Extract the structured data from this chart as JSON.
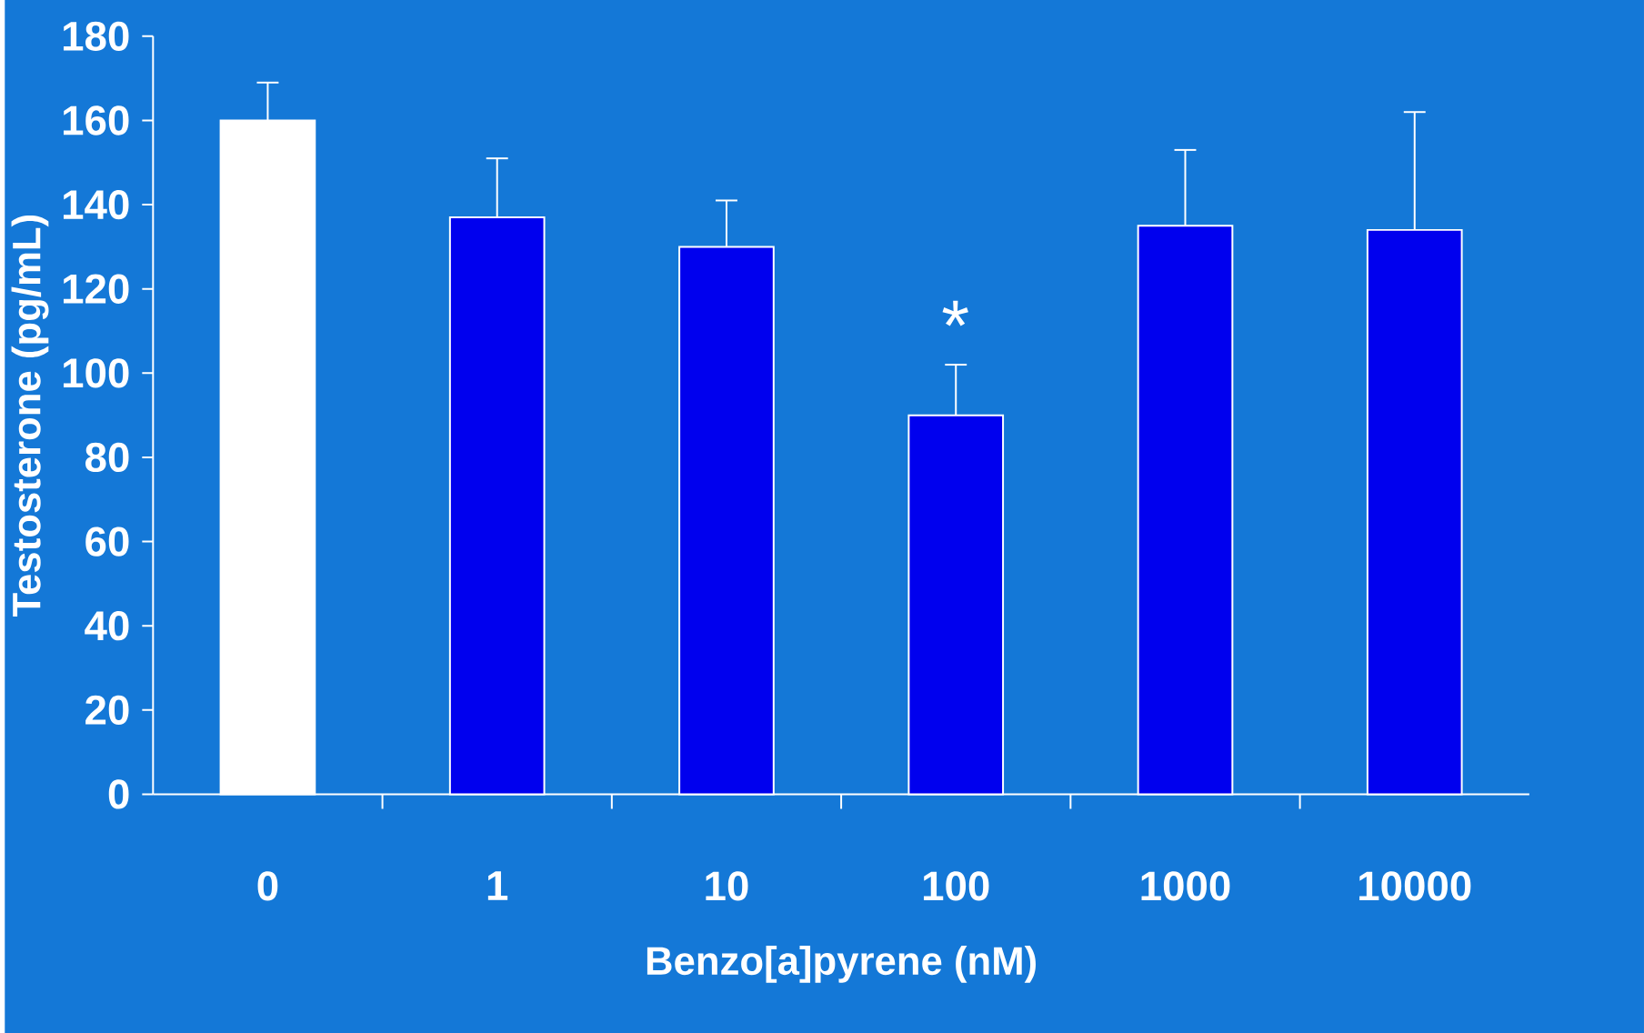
{
  "chart_data": {
    "type": "bar",
    "xlabel": "Benzo[a]pyrene (nM)",
    "ylabel": "Testosterone (pg/mL)",
    "categories": [
      "0",
      "1",
      "10",
      "100",
      "1000",
      "10000"
    ],
    "values": [
      160,
      137,
      130,
      90,
      135,
      134
    ],
    "colors": [
      "#ffffff",
      "#0000ee",
      "#0000ee",
      "#0000ee",
      "#0000ee",
      "#0000ee"
    ],
    "errors": [
      [
        160,
        169
      ],
      [
        137,
        151
      ],
      [
        130,
        141
      ],
      [
        90,
        102
      ],
      [
        135,
        153
      ],
      [
        134,
        162
      ]
    ],
    "ylim": [
      0,
      180
    ],
    "yticks": [
      0,
      20,
      40,
      60,
      80,
      100,
      120,
      140,
      160,
      180
    ],
    "annotations": [
      "*"
    ],
    "grid": false
  }
}
